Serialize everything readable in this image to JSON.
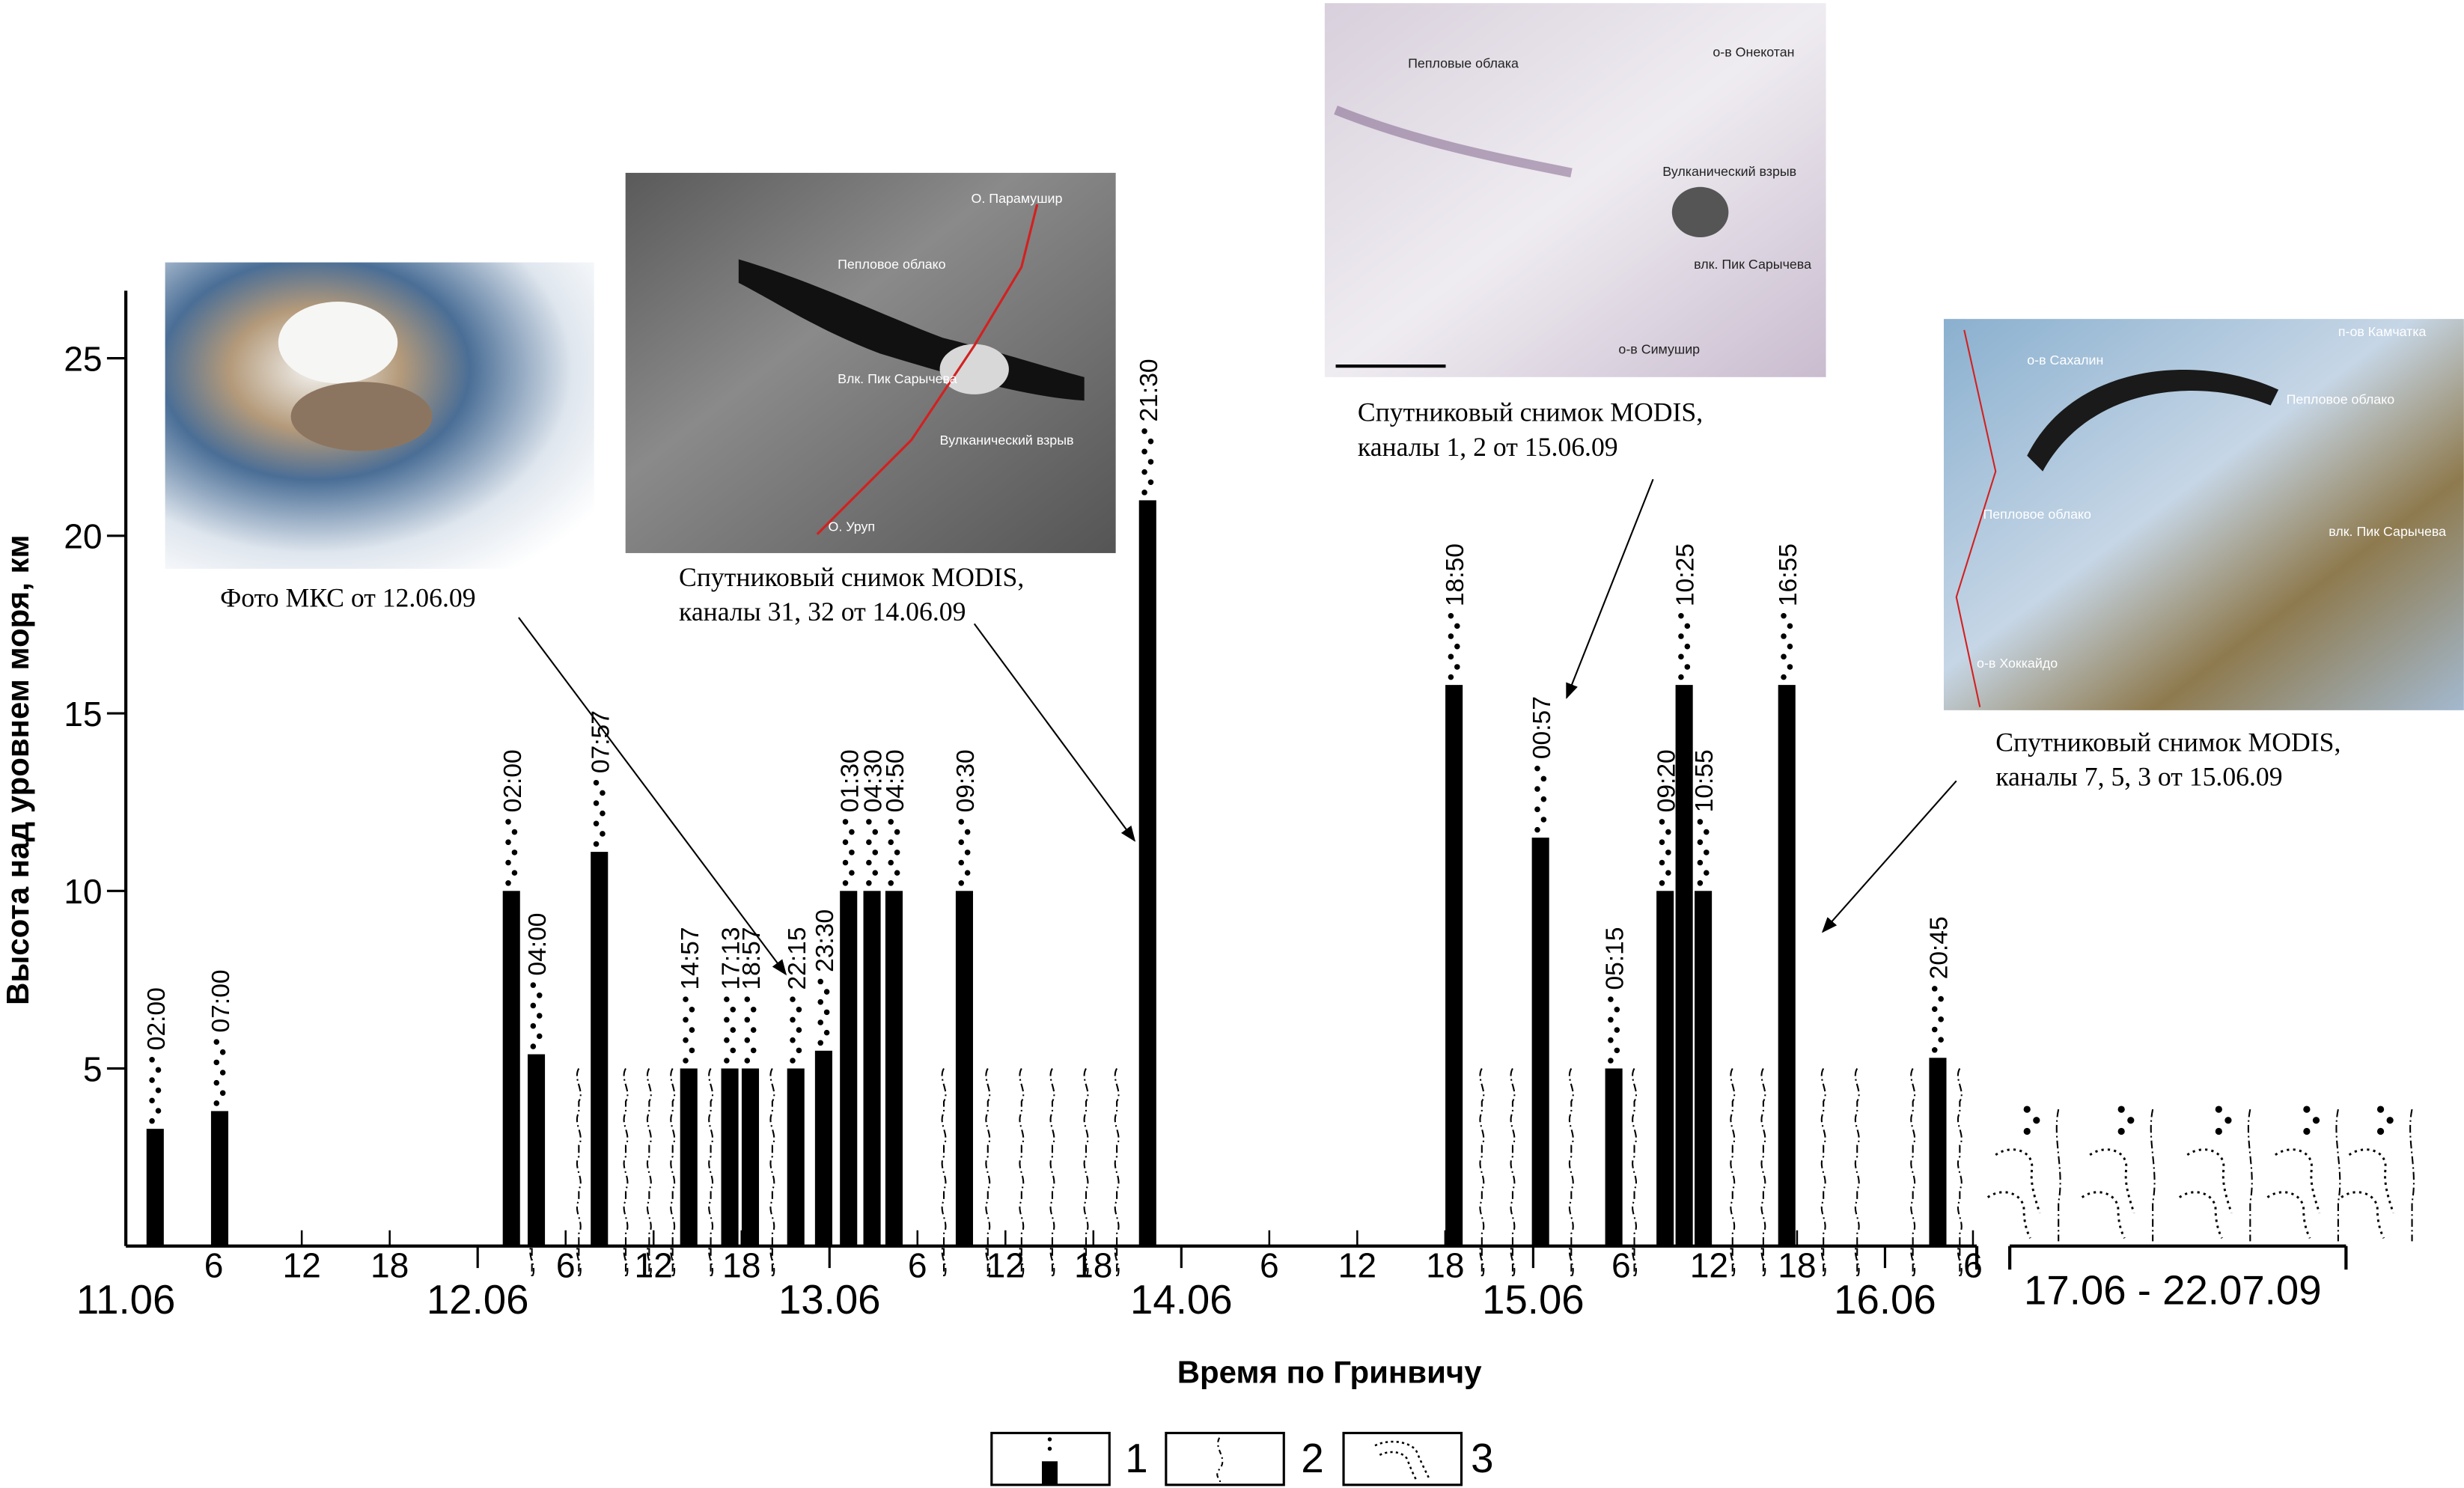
{
  "chart_data": {
    "type": "bar",
    "ylabel": "Высота над уровнем моря, км",
    "xlabel": "Время по Гринвичу",
    "ylim": [
      0,
      27
    ],
    "yticks": [
      5,
      10,
      15,
      20,
      25
    ],
    "xlim_hours": [
      0,
      126
    ],
    "days": [
      "11.06",
      "12.06",
      "13.06",
      "14.06",
      "15.06",
      "16.06"
    ],
    "hour_ticks": [
      "6",
      "12",
      "18"
    ],
    "extra_period_label": "17.06 - 22.07.09",
    "bars": [
      {
        "day": "11.06",
        "time": "02:00",
        "pos_h": 2.0,
        "height_km": 3.3
      },
      {
        "day": "11.06",
        "time": "07:00",
        "pos_h": 6.4,
        "height_km": 3.8
      },
      {
        "day": "12.06",
        "time": "02:00",
        "pos_h": 26.3,
        "height_km": 10
      },
      {
        "day": "12.06",
        "time": "04:00",
        "pos_h": 28.0,
        "height_km": 5.4
      },
      {
        "day": "12.06",
        "time": "07:57",
        "pos_h": 32.3,
        "height_km": 11.1
      },
      {
        "day": "12.06",
        "time": "14:57",
        "pos_h": 38.4,
        "height_km": 5
      },
      {
        "day": "12.06",
        "time": "17:13",
        "pos_h": 41.2,
        "height_km": 5
      },
      {
        "day": "12.06",
        "time": "18:57",
        "pos_h": 42.6,
        "height_km": 5
      },
      {
        "day": "12.06",
        "time": "22:15",
        "pos_h": 45.7,
        "height_km": 5
      },
      {
        "day": "12.06",
        "time": "23:30",
        "pos_h": 47.6,
        "height_km": 5.5
      },
      {
        "day": "13.06",
        "time": "01:30",
        "pos_h": 49.3,
        "height_km": 10
      },
      {
        "day": "13.06",
        "time": "04:30",
        "pos_h": 50.9,
        "height_km": 10
      },
      {
        "day": "13.06",
        "time": "04:50",
        "pos_h": 52.4,
        "height_km": 10
      },
      {
        "day": "13.06",
        "time": "09:30",
        "pos_h": 57.2,
        "height_km": 10
      },
      {
        "day": "13.06",
        "time": "21:30",
        "pos_h": 69.7,
        "height_km": 21
      },
      {
        "day": "14.06",
        "time": "18:50",
        "pos_h": 90.6,
        "height_km": 15.8
      },
      {
        "day": "15.06",
        "time": "00:57",
        "pos_h": 96.5,
        "height_km": 11.5
      },
      {
        "day": "15.06",
        "time": "05:15",
        "pos_h": 101.5,
        "height_km": 5
      },
      {
        "day": "15.06",
        "time": "09:20",
        "pos_h": 105.0,
        "height_km": 10
      },
      {
        "day": "15.06",
        "time": "10:25",
        "pos_h": 106.3,
        "height_km": 15.8
      },
      {
        "day": "15.06",
        "time": "10:55",
        "pos_h": 107.6,
        "height_km": 10
      },
      {
        "day": "15.06",
        "time": "16:55",
        "pos_h": 113.3,
        "height_km": 15.8
      },
      {
        "day": "16.06",
        "time": "20:45",
        "pos_h": 123.6,
        "height_km": 5.3
      }
    ],
    "plume_markers_pos_h": [
      27.7,
      30.9,
      34.1,
      35.7,
      37.3,
      39.9,
      44.1,
      55.8,
      58.8,
      61.1,
      63.2,
      65.5,
      67.6,
      92.5,
      94.6,
      98.6,
      102.9,
      109.6,
      111.7,
      115.8,
      118.1,
      121.9,
      125.1
    ],
    "plume_marker_height_km": 5,
    "legend": [
      {
        "symbol": "bar-with-dots",
        "label": "1"
      },
      {
        "symbol": "wavy-dash-line",
        "label": "2"
      },
      {
        "symbol": "dotted-hook",
        "label": "3"
      }
    ]
  },
  "insets": [
    {
      "caption": [
        "Фото МКС от 12.06.09"
      ],
      "labels": []
    },
    {
      "caption": [
        "Спутниковый снимок MODIS,",
        "каналы 31, 32 от 14.06.09"
      ],
      "labels": [
        "О. Парамушир",
        "Пепловое облако",
        "Влк. Пик Сарычева",
        "Вулканический взрыв",
        "О. Уруп"
      ]
    },
    {
      "caption": [
        "Спутниковый снимок MODIS,",
        "каналы 1, 2 от 15.06.09"
      ],
      "labels": [
        "Пепловые облака",
        "о-в Онекотан",
        "Вулканический взрыв",
        "влк. Пик Сарычева",
        "о-в Симушир"
      ]
    },
    {
      "caption": [
        "Спутниковый снимок MODIS,",
        "каналы 7, 5, 3 от 15.06.09"
      ],
      "labels": [
        "п-ов Камчатка",
        "о-в Сахалин",
        "Пепловое облако",
        "Пепловое облако",
        "влк. Пик Сарычева",
        "о-в Хоккайдо"
      ]
    }
  ],
  "colors": {
    "ink": "#000000",
    "map_red": "#d32020"
  }
}
